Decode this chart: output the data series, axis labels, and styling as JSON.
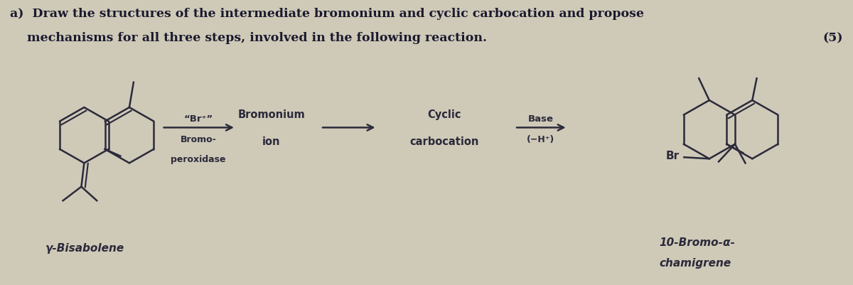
{
  "title_line1": "a)  Draw the structures of the intermediate bromonium and cyclic carbocation and propose",
  "title_line2": "    mechanisms for all three steps, involved in the following reaction.",
  "points": "(5)",
  "bg_color": "#cfc9b8",
  "text_color": "#1a1a2e",
  "mol_color": "#2a2a3a",
  "arrow1_label_top": "“Br⁺”",
  "arrow1_label_bottom1": "Bromo-",
  "arrow1_label_bottom2": "peroxidase",
  "intermediate1": "Bromonium",
  "intermediate1b": "ion",
  "intermediate2": "Cyclic",
  "intermediate2b": "carbocation",
  "arrow3_label_top": "Base",
  "arrow3_label_bottom": "(−H⁺)",
  "label_left": "γ-Bisabolene",
  "label_right1": "10-Bromo-α-",
  "label_right2": "chamigrene",
  "br_label": "Br"
}
